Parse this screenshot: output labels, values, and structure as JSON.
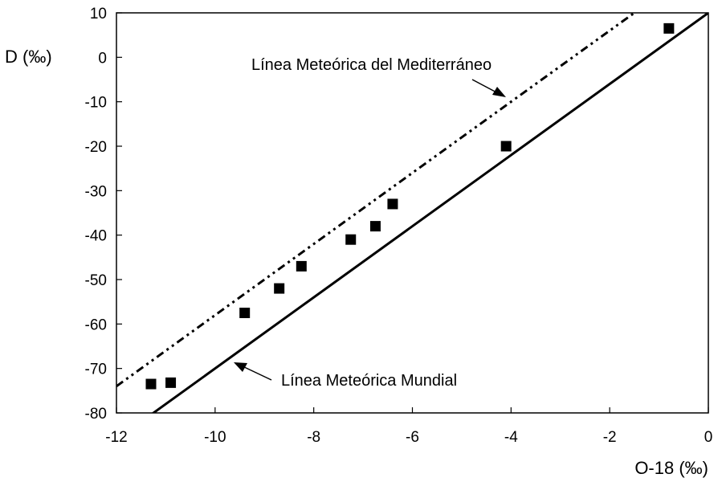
{
  "chart_data": {
    "type": "scatter",
    "xlabel": "O-18 (‰)",
    "ylabel": "D (‰)",
    "xlim": [
      -12,
      0
    ],
    "ylim": [
      -80,
      10
    ],
    "xticks": [
      -12,
      -10,
      -8,
      -6,
      -4,
      -2,
      0
    ],
    "yticks": [
      10,
      0,
      -10,
      -20,
      -30,
      -40,
      -50,
      -60,
      -70,
      -80
    ],
    "grid": false,
    "points": [
      {
        "x": -11.3,
        "y": -73.5
      },
      {
        "x": -10.9,
        "y": -73.2
      },
      {
        "x": -9.4,
        "y": -57.5
      },
      {
        "x": -8.7,
        "y": -52
      },
      {
        "x": -8.25,
        "y": -47
      },
      {
        "x": -7.25,
        "y": -41
      },
      {
        "x": -6.75,
        "y": -38
      },
      {
        "x": -6.4,
        "y": -33
      },
      {
        "x": -4.1,
        "y": -20
      },
      {
        "x": -0.8,
        "y": 6.5
      }
    ],
    "lines": [
      {
        "name": "Línea Meteórica del Mediterráneo",
        "style": "dash-dot",
        "slope": 8,
        "intercept": 22
      },
      {
        "name": "Línea Meteórica Mundial",
        "style": "solid",
        "slope": 8,
        "intercept": 10
      }
    ],
    "annotations": [
      {
        "text": "Línea Meteórica del Mediterráneo",
        "points_to": "Línea Meteórica del Mediterráneo"
      },
      {
        "text": "Línea Meteórica Mundial",
        "points_to": "Línea Meteórica Mundial"
      }
    ]
  }
}
